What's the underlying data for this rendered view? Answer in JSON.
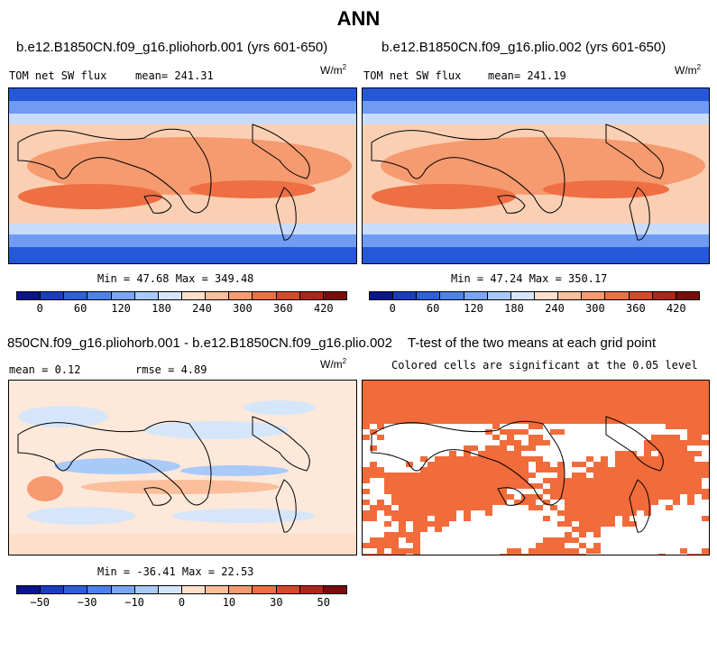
{
  "title": "ANN",
  "chart_data": [
    {
      "type": "heatmap",
      "panel": "case1",
      "title": "b.e12.B1850CN.f09_g16.pliohorb.001 (yrs 601-650)",
      "variable": "TOM net SW flux",
      "mean_text": "mean= 241.31",
      "units": "W/m",
      "units_exp": "2",
      "minmax_text": "Min =  47.68 Max = 349.48",
      "min": 47.68,
      "max": 349.48,
      "colorbar_ticks": [
        "0",
        "60",
        "120",
        "180",
        "240",
        "300",
        "360",
        "420"
      ],
      "colorbar_colors": [
        "#08158f",
        "#1a3cc4",
        "#2f5fe0",
        "#4d82ee",
        "#7aa6f5",
        "#a9c9f9",
        "#d5e6fb",
        "#fde0cc",
        "#fbbf9c",
        "#f69a6f",
        "#ee6f44",
        "#d9472a",
        "#b0241a",
        "#7a0c0c"
      ]
    },
    {
      "type": "heatmap",
      "panel": "case2",
      "title": "b.e12.B1850CN.f09_g16.plio.002 (yrs 601-650)",
      "variable": "TOM net SW flux",
      "mean_text": "mean= 241.19",
      "units": "W/m",
      "units_exp": "2",
      "minmax_text": "Min =  47.24 Max = 350.17",
      "min": 47.24,
      "max": 350.17,
      "colorbar_ticks": [
        "0",
        "60",
        "120",
        "180",
        "240",
        "300",
        "360",
        "420"
      ],
      "colorbar_colors": [
        "#08158f",
        "#1a3cc4",
        "#2f5fe0",
        "#4d82ee",
        "#7aa6f5",
        "#a9c9f9",
        "#d5e6fb",
        "#fde0cc",
        "#fbbf9c",
        "#f69a6f",
        "#ee6f44",
        "#d9472a",
        "#b0241a",
        "#7a0c0c"
      ]
    },
    {
      "type": "heatmap",
      "panel": "difference",
      "title": "850CN.f09_g16.pliohorb.001 - b.e12.B1850CN.f09_g16.plio.002",
      "mean_text": "mean =   0.12",
      "rmse_text": "rmse =   4.89",
      "units": "W/m",
      "units_exp": "2",
      "minmax_text": "Min = -36.41 Max =  22.53",
      "min": -36.41,
      "max": 22.53,
      "colorbar_ticks": [
        "−50",
        "−30",
        "−10",
        "0",
        "10",
        "30",
        "50"
      ],
      "colorbar_colors": [
        "#08158f",
        "#1a3cc4",
        "#2f5fe0",
        "#4d82ee",
        "#7aa6f5",
        "#a9c9f9",
        "#d5e6fb",
        "#fde0cc",
        "#fbbf9c",
        "#f69a6f",
        "#ee6f44",
        "#d9472a",
        "#b0241a",
        "#7a0c0c"
      ]
    },
    {
      "type": "heatmap",
      "panel": "ttest",
      "title": "T-test of the two means at each grid point",
      "subtitle": "Colored cells are significant at the 0.05 level",
      "significant_color": "#f26b3a"
    }
  ]
}
